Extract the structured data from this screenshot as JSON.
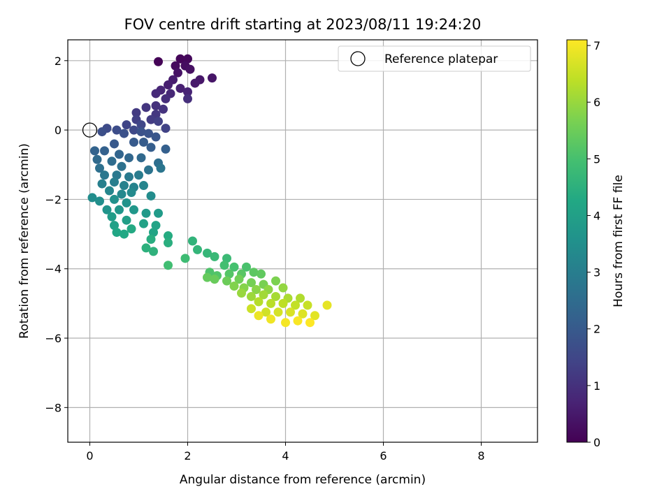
{
  "chart_data": {
    "type": "scatter",
    "title": "FOV centre drift starting at 2023/08/11 19:24:20",
    "xlabel": "Angular distance from reference (arcmin)",
    "ylabel": "Rotation from reference (arcmin)",
    "xlim": [
      -0.45,
      9.15
    ],
    "ylim": [
      -9.0,
      2.6
    ],
    "x_ticks": [
      "0",
      "2",
      "4",
      "6",
      "8"
    ],
    "y_ticks": [
      "2",
      "0",
      "−2",
      "−4",
      "−6",
      "−8"
    ],
    "grid": true,
    "legend": {
      "placement": "top-right",
      "entries": [
        "Reference platepar"
      ]
    },
    "reference_point": {
      "x": 0,
      "y": 0
    },
    "colorbar": {
      "label": "Hours from first FF file",
      "range": [
        0,
        7.1
      ],
      "ticks": [
        "0",
        "1",
        "2",
        "3",
        "4",
        "5",
        "6",
        "7"
      ],
      "colormap": "viridis"
    },
    "series": [
      {
        "points": [
          [
            1.4,
            1.97,
            0.05
          ],
          [
            1.85,
            2.05,
            0.1
          ],
          [
            2.0,
            2.05,
            0.15
          ],
          [
            1.75,
            1.85,
            0.2
          ],
          [
            1.95,
            1.85,
            0.25
          ],
          [
            2.05,
            1.75,
            0.3
          ],
          [
            1.8,
            1.65,
            0.35
          ],
          [
            2.5,
            1.5,
            0.4
          ],
          [
            2.25,
            1.45,
            0.45
          ],
          [
            2.15,
            1.35,
            0.5
          ],
          [
            1.7,
            1.45,
            0.55
          ],
          [
            1.6,
            1.3,
            0.6
          ],
          [
            1.85,
            1.2,
            0.65
          ],
          [
            2.0,
            1.1,
            0.7
          ],
          [
            1.45,
            1.15,
            0.75
          ],
          [
            1.65,
            1.05,
            0.8
          ],
          [
            1.35,
            1.05,
            0.85
          ],
          [
            1.55,
            0.9,
            0.9
          ],
          [
            2.0,
            0.9,
            0.95
          ],
          [
            1.35,
            0.7,
            1.0
          ],
          [
            1.5,
            0.6,
            1.05
          ],
          [
            1.15,
            0.65,
            1.1
          ],
          [
            1.35,
            0.45,
            1.15
          ],
          [
            0.95,
            0.5,
            1.2
          ],
          [
            1.25,
            0.3,
            1.25
          ],
          [
            0.95,
            0.3,
            1.3
          ],
          [
            1.4,
            0.25,
            1.35
          ],
          [
            1.55,
            0.05,
            1.4
          ],
          [
            0.75,
            0.15,
            1.45
          ],
          [
            1.05,
            0.15,
            1.5
          ],
          [
            0.9,
            0.0,
            1.55
          ],
          [
            0.35,
            0.05,
            1.6
          ],
          [
            0.55,
            0.0,
            1.65
          ],
          [
            0.25,
            -0.05,
            1.7
          ],
          [
            0.7,
            -0.1,
            1.75
          ],
          [
            1.05,
            -0.05,
            1.8
          ],
          [
            1.2,
            -0.1,
            1.85
          ],
          [
            1.35,
            -0.2,
            1.9
          ],
          [
            0.5,
            -0.4,
            1.95
          ],
          [
            0.9,
            -0.35,
            2.0
          ],
          [
            1.1,
            -0.35,
            2.05
          ],
          [
            1.25,
            -0.5,
            2.1
          ],
          [
            1.55,
            -0.55,
            2.15
          ],
          [
            0.3,
            -0.6,
            2.2
          ],
          [
            0.1,
            -0.6,
            2.25
          ],
          [
            0.6,
            -0.7,
            2.3
          ],
          [
            0.8,
            -0.8,
            2.35
          ],
          [
            1.05,
            -0.8,
            2.4
          ],
          [
            0.15,
            -0.85,
            2.45
          ],
          [
            0.45,
            -0.9,
            2.5
          ],
          [
            1.4,
            -0.95,
            2.55
          ],
          [
            0.2,
            -1.1,
            2.6
          ],
          [
            0.65,
            -1.05,
            2.65
          ],
          [
            1.2,
            -1.15,
            2.7
          ],
          [
            1.45,
            -1.1,
            2.75
          ],
          [
            0.3,
            -1.3,
            2.8
          ],
          [
            0.55,
            -1.3,
            2.85
          ],
          [
            0.8,
            -1.35,
            2.9
          ],
          [
            1.0,
            -1.3,
            2.95
          ],
          [
            0.5,
            -1.5,
            3.0
          ],
          [
            0.25,
            -1.55,
            3.05
          ],
          [
            0.7,
            -1.6,
            3.1
          ],
          [
            0.9,
            -1.65,
            3.15
          ],
          [
            1.1,
            -1.6,
            3.2
          ],
          [
            0.4,
            -1.75,
            3.25
          ],
          [
            0.65,
            -1.85,
            3.3
          ],
          [
            0.85,
            -1.8,
            3.35
          ],
          [
            1.25,
            -1.9,
            3.4
          ],
          [
            0.05,
            -1.95,
            3.45
          ],
          [
            0.2,
            -2.05,
            3.5
          ],
          [
            0.5,
            -2.0,
            3.55
          ],
          [
            0.75,
            -2.1,
            3.6
          ],
          [
            0.35,
            -2.3,
            3.65
          ],
          [
            0.6,
            -2.3,
            3.7
          ],
          [
            0.9,
            -2.3,
            3.75
          ],
          [
            1.15,
            -2.4,
            3.8
          ],
          [
            1.4,
            -2.4,
            3.85
          ],
          [
            0.45,
            -2.5,
            3.9
          ],
          [
            0.75,
            -2.6,
            3.95
          ],
          [
            0.5,
            -2.75,
            4.0
          ],
          [
            1.1,
            -2.7,
            4.05
          ],
          [
            1.35,
            -2.75,
            4.1
          ],
          [
            1.3,
            -2.95,
            4.15
          ],
          [
            0.55,
            -2.95,
            4.2
          ],
          [
            0.7,
            -3.0,
            4.25
          ],
          [
            0.85,
            -2.85,
            4.3
          ],
          [
            1.6,
            -3.05,
            4.35
          ],
          [
            1.25,
            -3.15,
            4.4
          ],
          [
            1.6,
            -3.25,
            4.45
          ],
          [
            1.15,
            -3.4,
            4.5
          ],
          [
            1.3,
            -3.5,
            4.55
          ],
          [
            2.1,
            -3.2,
            4.6
          ],
          [
            2.2,
            -3.45,
            4.65
          ],
          [
            2.4,
            -3.55,
            4.7
          ],
          [
            2.55,
            -3.65,
            4.75
          ],
          [
            2.8,
            -3.7,
            4.8
          ],
          [
            1.95,
            -3.7,
            4.85
          ],
          [
            1.6,
            -3.9,
            4.9
          ],
          [
            2.75,
            -3.9,
            4.95
          ],
          [
            2.95,
            -3.95,
            5.0
          ],
          [
            3.2,
            -3.95,
            5.05
          ],
          [
            2.45,
            -4.1,
            5.1
          ],
          [
            2.6,
            -4.2,
            5.15
          ],
          [
            2.85,
            -4.15,
            5.2
          ],
          [
            3.1,
            -4.15,
            5.25
          ],
          [
            3.35,
            -4.1,
            5.3
          ],
          [
            3.5,
            -4.15,
            5.35
          ],
          [
            2.4,
            -4.25,
            5.4
          ],
          [
            2.55,
            -4.3,
            5.45
          ],
          [
            2.8,
            -4.35,
            5.5
          ],
          [
            3.05,
            -4.3,
            5.55
          ],
          [
            3.3,
            -4.4,
            5.6
          ],
          [
            3.55,
            -4.45,
            5.65
          ],
          [
            3.8,
            -4.35,
            5.7
          ],
          [
            2.95,
            -4.5,
            5.75
          ],
          [
            3.15,
            -4.55,
            5.8
          ],
          [
            3.4,
            -4.6,
            5.85
          ],
          [
            3.65,
            -4.6,
            5.9
          ],
          [
            3.95,
            -4.55,
            5.95
          ],
          [
            3.1,
            -4.7,
            6.0
          ],
          [
            3.3,
            -4.8,
            6.05
          ],
          [
            3.55,
            -4.75,
            6.1
          ],
          [
            3.8,
            -4.8,
            6.15
          ],
          [
            4.05,
            -4.85,
            6.2
          ],
          [
            4.3,
            -4.85,
            6.25
          ],
          [
            3.45,
            -4.95,
            6.3
          ],
          [
            3.7,
            -5.0,
            6.35
          ],
          [
            3.95,
            -5.0,
            6.4
          ],
          [
            4.2,
            -5.05,
            6.45
          ],
          [
            4.45,
            -5.05,
            6.5
          ],
          [
            3.3,
            -5.15,
            6.55
          ],
          [
            3.6,
            -5.25,
            6.6
          ],
          [
            3.85,
            -5.25,
            6.65
          ],
          [
            4.1,
            -5.25,
            6.7
          ],
          [
            4.35,
            -5.3,
            6.75
          ],
          [
            4.6,
            -5.35,
            6.8
          ],
          [
            4.85,
            -5.05,
            6.85
          ],
          [
            3.45,
            -5.35,
            6.9
          ],
          [
            3.7,
            -5.45,
            6.95
          ],
          [
            4.0,
            -5.55,
            7.0
          ],
          [
            4.25,
            -5.5,
            7.05
          ],
          [
            4.5,
            -5.55,
            7.1
          ]
        ]
      }
    ]
  }
}
